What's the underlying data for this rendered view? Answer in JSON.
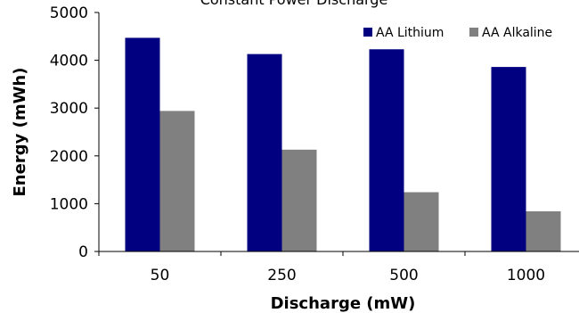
{
  "chart_data": {
    "type": "bar",
    "title": "Constant Power Discharge",
    "xlabel": "Discharge (mW)",
    "ylabel": "Energy (mWh)",
    "categories": [
      "50",
      "250",
      "500",
      "1000"
    ],
    "ylim": [
      0,
      5000
    ],
    "yticks": [
      "0",
      "1000",
      "2000",
      "3000",
      "4000",
      "5000"
    ],
    "grid": false,
    "legend_position": "top-right",
    "series": [
      {
        "name": "AA Lithium",
        "values": [
          4470,
          4130,
          4230,
          3860
        ],
        "color": "#000080"
      },
      {
        "name": "AA Alkaline",
        "values": [
          2940,
          2130,
          1240,
          840
        ],
        "color": "#808080"
      }
    ]
  }
}
